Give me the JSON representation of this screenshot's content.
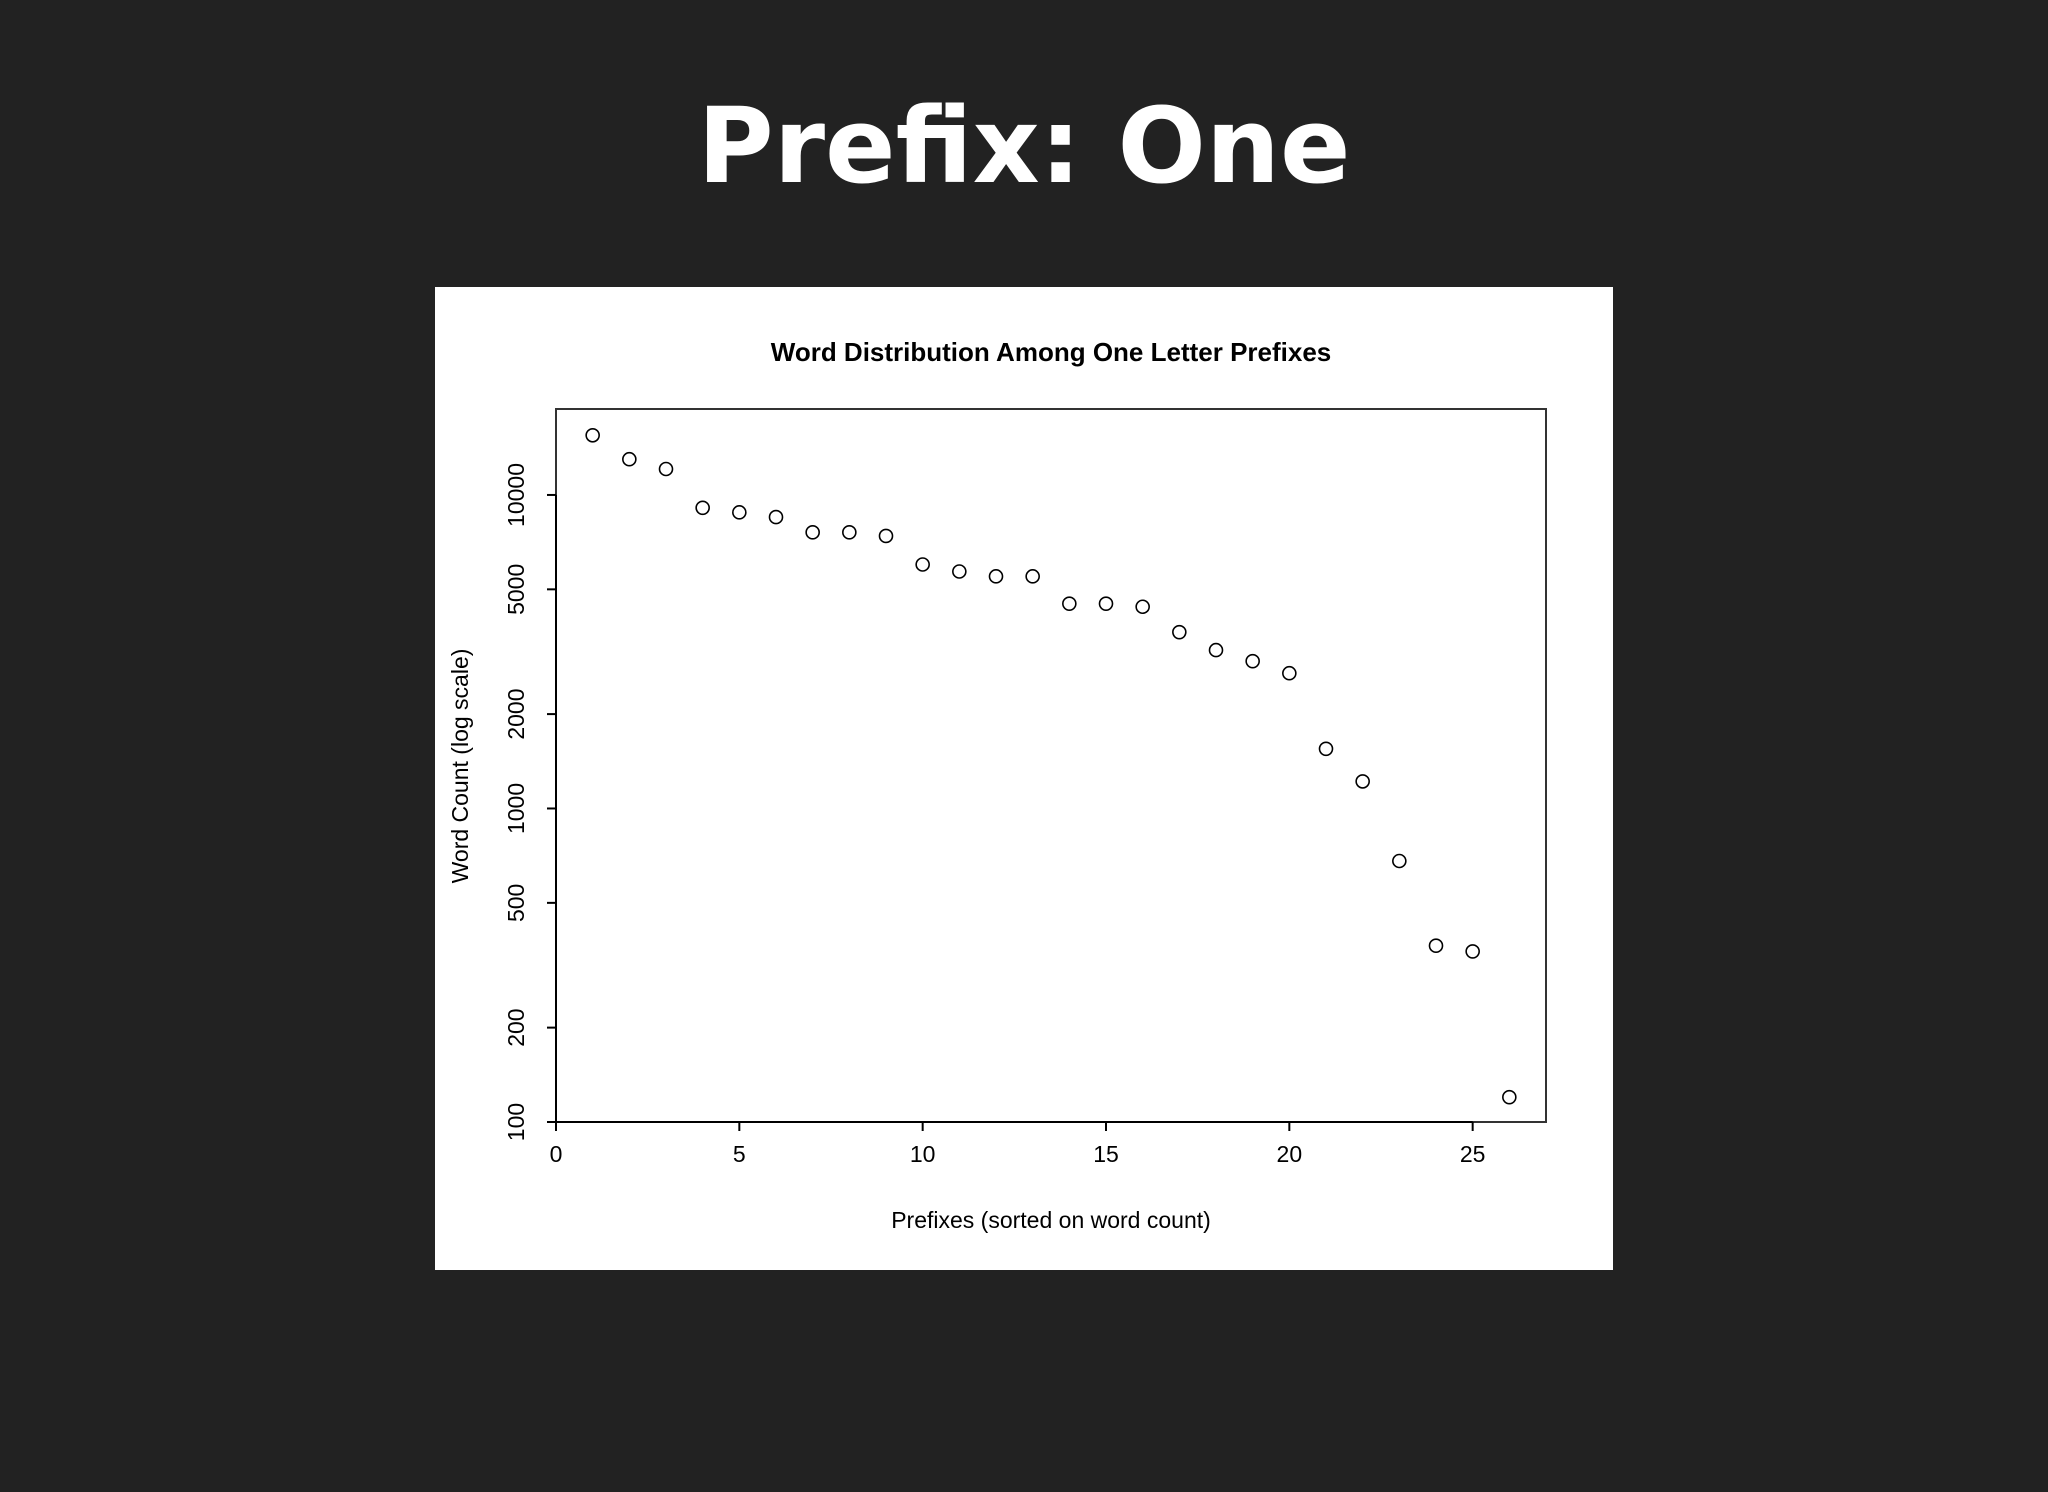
{
  "slide_title": "Prefix: One",
  "chart_data": {
    "type": "scatter",
    "title": "Word Distribution Among One Letter Prefixes",
    "x_label": "Prefixes (sorted on word count)",
    "y_label": "Word Count (log scale)",
    "x": [
      1,
      2,
      3,
      4,
      5,
      6,
      7,
      8,
      9,
      10,
      11,
      12,
      13,
      14,
      15,
      16,
      17,
      18,
      19,
      20,
      21,
      22,
      23,
      24,
      25,
      26
    ],
    "values": [
      15500,
      13000,
      12100,
      9100,
      8800,
      8500,
      7600,
      7600,
      7400,
      6000,
      5700,
      5500,
      5500,
      4500,
      4500,
      4400,
      3650,
      3200,
      2950,
      2700,
      1550,
      1220,
      680,
      365,
      350,
      120
    ],
    "color": "#000000",
    "y_log": true,
    "grid": false,
    "xlim": [
      0,
      27
    ],
    "ylim": [
      100,
      18800
    ],
    "xticks": [
      0,
      5,
      10,
      15,
      20,
      25
    ],
    "yticks": [
      100,
      200,
      500,
      1000,
      2000,
      5000,
      10000
    ]
  }
}
